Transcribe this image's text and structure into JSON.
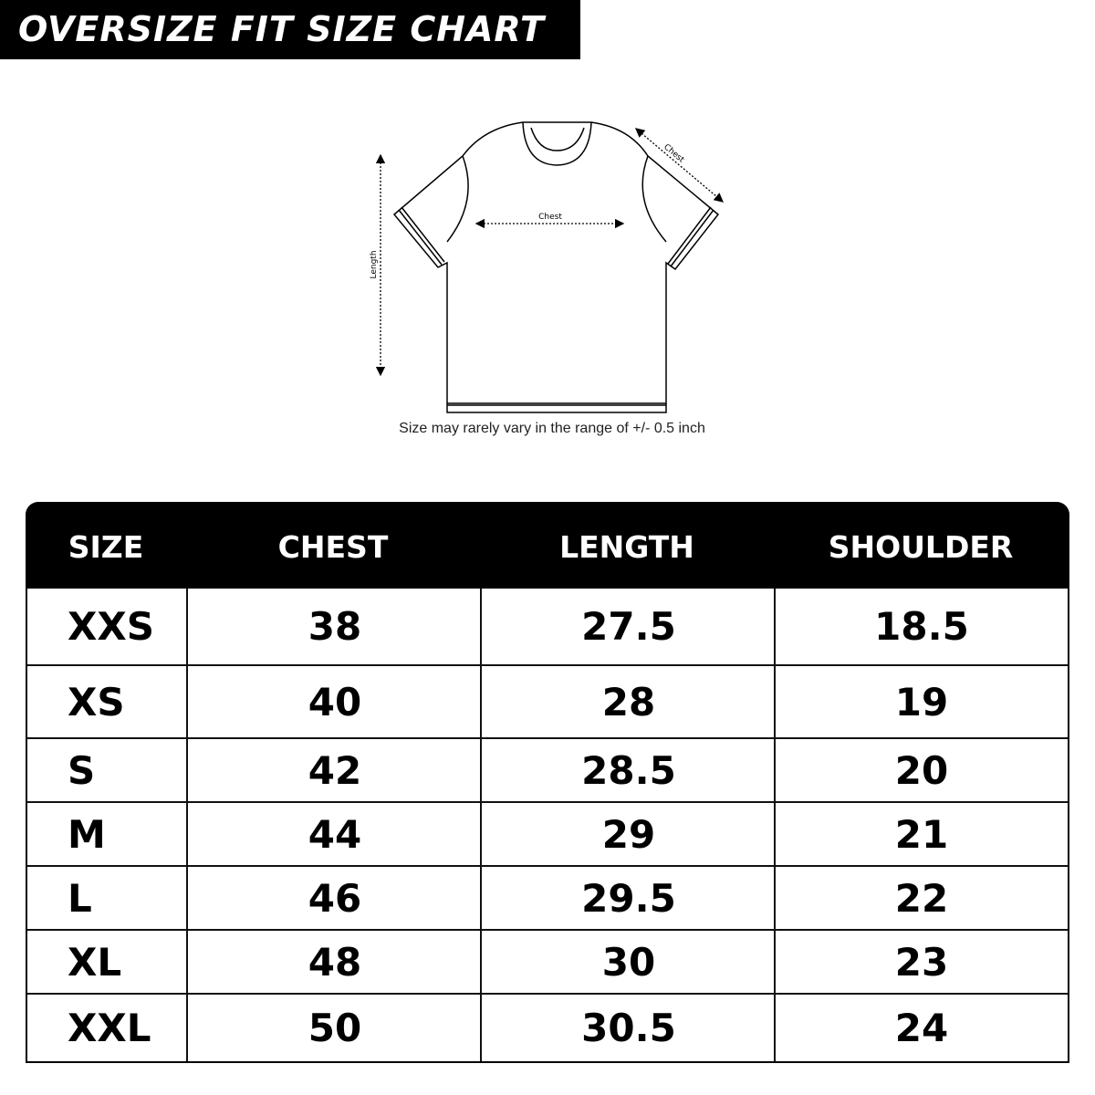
{
  "title": "OVERSIZE FIT SIZE CHART",
  "diagram": {
    "length_label": "Length",
    "chest_label": "Chest",
    "shoulder_label": "Chest",
    "note": "Size may rarely vary in the range of +/- 0.5 inch"
  },
  "table": {
    "headers": [
      "SIZE",
      "CHEST",
      "LENGTH",
      "SHOULDER"
    ],
    "rows": [
      [
        "XXS",
        "38",
        "27.5",
        "18.5"
      ],
      [
        "XS",
        "40",
        "28",
        "19"
      ],
      [
        "S",
        "42",
        "28.5",
        "20"
      ],
      [
        "M",
        "44",
        "29",
        "21"
      ],
      [
        "L",
        "46",
        "29.5",
        "22"
      ],
      [
        "XL",
        "48",
        "30",
        "23"
      ],
      [
        "XXL",
        "50",
        "30.5",
        "24"
      ]
    ]
  }
}
